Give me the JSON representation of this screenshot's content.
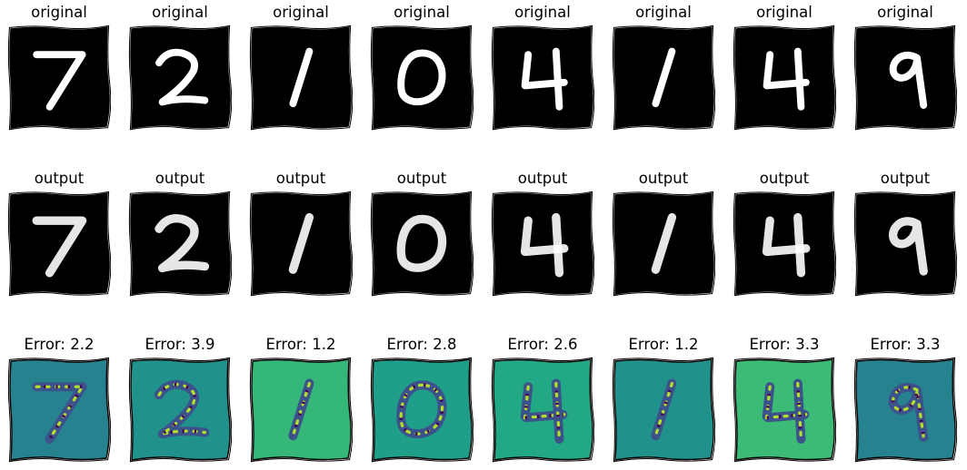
{
  "rows": [
    {
      "kind": "original",
      "titles": [
        "original",
        "original",
        "original",
        "original",
        "original",
        "original",
        "original",
        "original"
      ]
    },
    {
      "kind": "output",
      "titles": [
        "output",
        "output",
        "output",
        "output",
        "output",
        "output",
        "output",
        "output"
      ]
    },
    {
      "kind": "error",
      "titles": [
        "Error: 2.2",
        "Error: 3.9",
        "Error: 1.2",
        "Error: 2.8",
        "Error: 2.6",
        "Error: 1.2",
        "Error: 3.3",
        "Error: 3.3"
      ]
    }
  ],
  "digits": [
    "7",
    "2",
    "1",
    "0",
    "4",
    "1",
    "4",
    "9"
  ],
  "error_backgrounds": [
    "#26828e",
    "#21918c",
    "#35b779",
    "#1f9e89",
    "#22a884",
    "#21918c",
    "#3bbb75",
    "#26828e"
  ],
  "colors": {
    "digit_background": "#000000",
    "digit_stroke": "#ffffff",
    "frame": "#000000",
    "error_dark": "#440154",
    "error_mid": "#3b528b",
    "error_bright": "#fde725",
    "error_light": "#b5de2b"
  }
}
